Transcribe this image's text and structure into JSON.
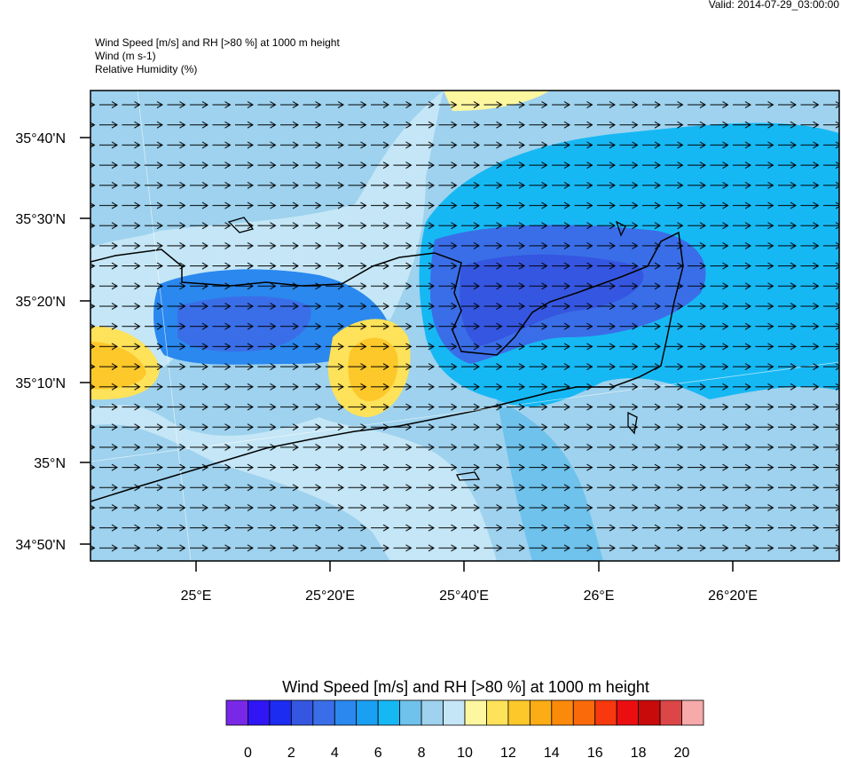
{
  "valid": "Valid: 2014-07-29_03:00:00",
  "header": [
    "Wind Speed [m/s] and RH [>80 %] at 1000 m height",
    "Wind   (m s-1)",
    "Relative Humidity   (%)"
  ],
  "lat_labels": [
    "35°40'N",
    "35°30'N",
    "35°20'N",
    "35°10'N",
    "35°N",
    "34°50'N"
  ],
  "lon_labels": [
    "25°E",
    "25°20'E",
    "25°40'E",
    "26°E",
    "26°20'E"
  ],
  "colorbar": {
    "title": "Wind Speed [m/s] and RH [>80 %] at 1000 m height",
    "colors": [
      "#7a28e8",
      "#3016f5",
      "#1c2cf0",
      "#3556e0",
      "#3a6ee8",
      "#2a88ef",
      "#1aa0f2",
      "#16b8f4",
      "#6ec2ec",
      "#9ed2ee",
      "#c4e6f6",
      "#fdf7a0",
      "#fde25a",
      "#fdc82a",
      "#fcac14",
      "#fc8a0a",
      "#fb6a0a",
      "#f8380e",
      "#ea0e10",
      "#c80a0a",
      "#dc4646",
      "#f6aaaa"
    ],
    "ticks": [
      "0",
      "2",
      "4",
      "6",
      "8",
      "10",
      "12",
      "14",
      "16",
      "18",
      "20"
    ]
  }
}
